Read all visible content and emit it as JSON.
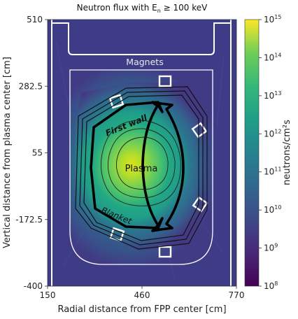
{
  "chart_data": {
    "type": "heatmap",
    "title": "Neutron flux with E",
    "title_sub": "n",
    "title_suffix": " ≥ 100 keV",
    "xlabel": "Radial distance from FPP center [cm]",
    "ylabel": "Vertical distance from plasma center [cm]",
    "xlim": [
      150,
      770
    ],
    "ylim": [
      -400,
      510
    ],
    "x_ticks": [
      150,
      460,
      770
    ],
    "y_ticks": [
      510,
      282.5,
      55,
      -172.5,
      -400
    ],
    "x_tick_labels": [
      "150",
      "460",
      "770"
    ],
    "y_tick_labels": [
      "510",
      "282.5",
      "55",
      "-172.5",
      "-400"
    ],
    "colorbar": {
      "label": "neutrons/cm²s",
      "scale": "log",
      "range": [
        100000000.0,
        1000000000000000.0
      ],
      "ticks": [
        {
          "base": "10",
          "exp": "15"
        },
        {
          "base": "10",
          "exp": "14"
        },
        {
          "base": "10",
          "exp": "13"
        },
        {
          "base": "10",
          "exp": "12"
        },
        {
          "base": "10",
          "exp": "11"
        },
        {
          "base": "10",
          "exp": "10"
        },
        {
          "base": "10",
          "exp": "9"
        },
        {
          "base": "10",
          "exp": "8"
        }
      ],
      "colormap": "viridis"
    },
    "annotations": [
      {
        "text": "Magnets",
        "color": "#e8e8e8"
      },
      {
        "text": "First wall",
        "color": "#111111"
      },
      {
        "text": "Plasma",
        "color": "#111111"
      },
      {
        "text": "Blanket",
        "color": "#111111"
      }
    ]
  }
}
